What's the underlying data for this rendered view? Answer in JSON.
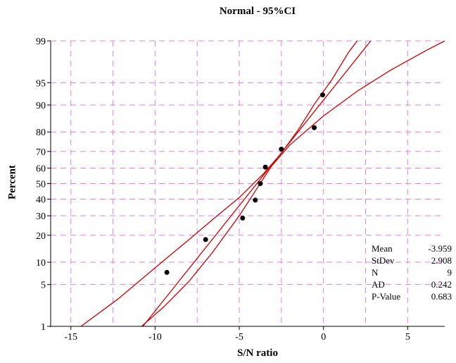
{
  "chart_data": {
    "type": "scatter",
    "title": "Normal - 95%CI",
    "xlabel": "S/N ratio",
    "ylabel": "Percent",
    "xlim": [
      -16.2,
      7.2
    ],
    "ylim_percent": [
      1,
      99
    ],
    "y_scale": "normal-probability",
    "x_ticks": [
      -15,
      -10,
      -5,
      0,
      5
    ],
    "y_ticks": [
      1,
      5,
      10,
      20,
      30,
      40,
      50,
      60,
      70,
      80,
      90,
      95,
      99
    ],
    "grid": true,
    "points": [
      {
        "x": -9.3,
        "y": 7.4
      },
      {
        "x": -7.0,
        "y": 18.1
      },
      {
        "x": -4.8,
        "y": 28.7
      },
      {
        "x": -4.05,
        "y": 39.4
      },
      {
        "x": -3.75,
        "y": 50.0
      },
      {
        "x": -3.45,
        "y": 60.6
      },
      {
        "x": -2.5,
        "y": 71.3
      },
      {
        "x": -0.55,
        "y": 81.9
      },
      {
        "x": -0.05,
        "y": 92.6
      }
    ],
    "fit_line": {
      "mean": -3.959,
      "stdev": 2.908
    },
    "ci_bands": {
      "lower": [
        {
          "x": -10.8,
          "y": 1
        },
        {
          "x": -9.5,
          "y": 2.2
        },
        {
          "x": -8.0,
          "y": 5.5
        },
        {
          "x": -6.6,
          "y": 13
        },
        {
          "x": -5.0,
          "y": 30
        },
        {
          "x": -4.0,
          "y": 46
        },
        {
          "x": -3.1,
          "y": 61
        },
        {
          "x": -2.0,
          "y": 73.5
        },
        {
          "x": 0.0,
          "y": 86.5
        },
        {
          "x": 2.0,
          "y": 93.4
        },
        {
          "x": 4.0,
          "y": 96.8
        },
        {
          "x": 6.1,
          "y": 98.5
        },
        {
          "x": 7.2,
          "y": 99
        }
      ],
      "upper": [
        {
          "x": -14.4,
          "y": 1
        },
        {
          "x": -12.2,
          "y": 3
        },
        {
          "x": -10.0,
          "y": 8.5
        },
        {
          "x": -8.0,
          "y": 18
        },
        {
          "x": -6.5,
          "y": 28.5
        },
        {
          "x": -5.0,
          "y": 41
        },
        {
          "x": -3.6,
          "y": 56
        },
        {
          "x": -2.5,
          "y": 69
        },
        {
          "x": -1.5,
          "y": 81
        },
        {
          "x": -0.5,
          "y": 90.5
        },
        {
          "x": 0.5,
          "y": 95.5
        },
        {
          "x": 1.5,
          "y": 98.4
        },
        {
          "x": 2.0,
          "y": 99
        }
      ]
    },
    "colors": {
      "line": "#cc0000",
      "grid": "#e080e0",
      "points": "#000000"
    },
    "stats": [
      {
        "label": "Mean",
        "value": "-3.959"
      },
      {
        "label": "StDev",
        "value": "2.908"
      },
      {
        "label": "N",
        "value": "9"
      },
      {
        "label": "AD",
        "value": "0.242"
      },
      {
        "label": "P-Value",
        "value": "0.683"
      }
    ]
  }
}
